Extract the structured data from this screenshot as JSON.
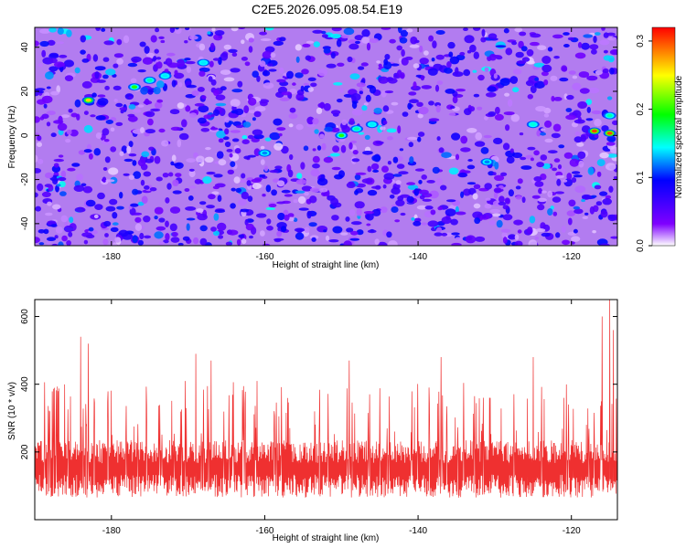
{
  "title": "C2E5.2026.095.08.54.E19",
  "chart_data": [
    {
      "type": "heatmap",
      "xlabel": "Height of straight line (km)",
      "ylabel": "Frequency (Hz)",
      "xlim": [
        -190,
        -114
      ],
      "ylim": [
        -50,
        49
      ],
      "xticks": [
        -180,
        -160,
        -140,
        -120
      ],
      "yticks": [
        -40,
        -20,
        0,
        20,
        40
      ],
      "colorbar": {
        "label": "Normalized spectral amplitude",
        "range": [
          0.0,
          0.32
        ],
        "ticks": [
          "0.0",
          "0.1",
          "0.2",
          "0.3"
        ],
        "tick_values": [
          0.0,
          0.1,
          0.2,
          0.3
        ],
        "colormap": [
          "#ffffff",
          "#7f00ff",
          "#0000ff",
          "#00ffff",
          "#00ff00",
          "#ffff00",
          "#ff0000"
        ]
      },
      "hotspots": [
        {
          "x": -183,
          "y": 16,
          "v": 0.26
        },
        {
          "x": -177,
          "y": 22,
          "v": 0.2
        },
        {
          "x": -175,
          "y": 25,
          "v": 0.16
        },
        {
          "x": -173,
          "y": 27,
          "v": 0.14
        },
        {
          "x": -168,
          "y": 33,
          "v": 0.14
        },
        {
          "x": -150,
          "y": 0,
          "v": 0.2
        },
        {
          "x": -148,
          "y": 3,
          "v": 0.16
        },
        {
          "x": -146,
          "y": 5,
          "v": 0.14
        },
        {
          "x": -125,
          "y": 5,
          "v": 0.15
        },
        {
          "x": -117,
          "y": 2,
          "v": 0.3
        },
        {
          "x": -115,
          "y": 1,
          "v": 0.3
        },
        {
          "x": -115,
          "y": 9,
          "v": 0.16
        },
        {
          "x": -160,
          "y": -8,
          "v": 0.12
        },
        {
          "x": -131,
          "y": -12,
          "v": 0.12
        }
      ]
    },
    {
      "type": "line",
      "xlabel": "Height of straight line (km)",
      "ylabel": "SNR (10 * v/v)",
      "xlim": [
        -190,
        -114
      ],
      "ylim": [
        0,
        650
      ],
      "xticks": [
        -180,
        -160,
        -140,
        -120
      ],
      "yticks": [
        200,
        400,
        600
      ],
      "color": "#ef3030",
      "baseline": 150,
      "noise_spread": 85,
      "peaks": [
        {
          "x": -184,
          "y": 540
        },
        {
          "x": -183,
          "y": 520
        },
        {
          "x": -169,
          "y": 490
        },
        {
          "x": -167,
          "y": 470
        },
        {
          "x": -149,
          "y": 470
        },
        {
          "x": -137,
          "y": 480
        },
        {
          "x": -125,
          "y": 480
        },
        {
          "x": -115,
          "y": 650
        },
        {
          "x": -116,
          "y": 600
        },
        {
          "x": -114.5,
          "y": 560
        }
      ]
    }
  ]
}
